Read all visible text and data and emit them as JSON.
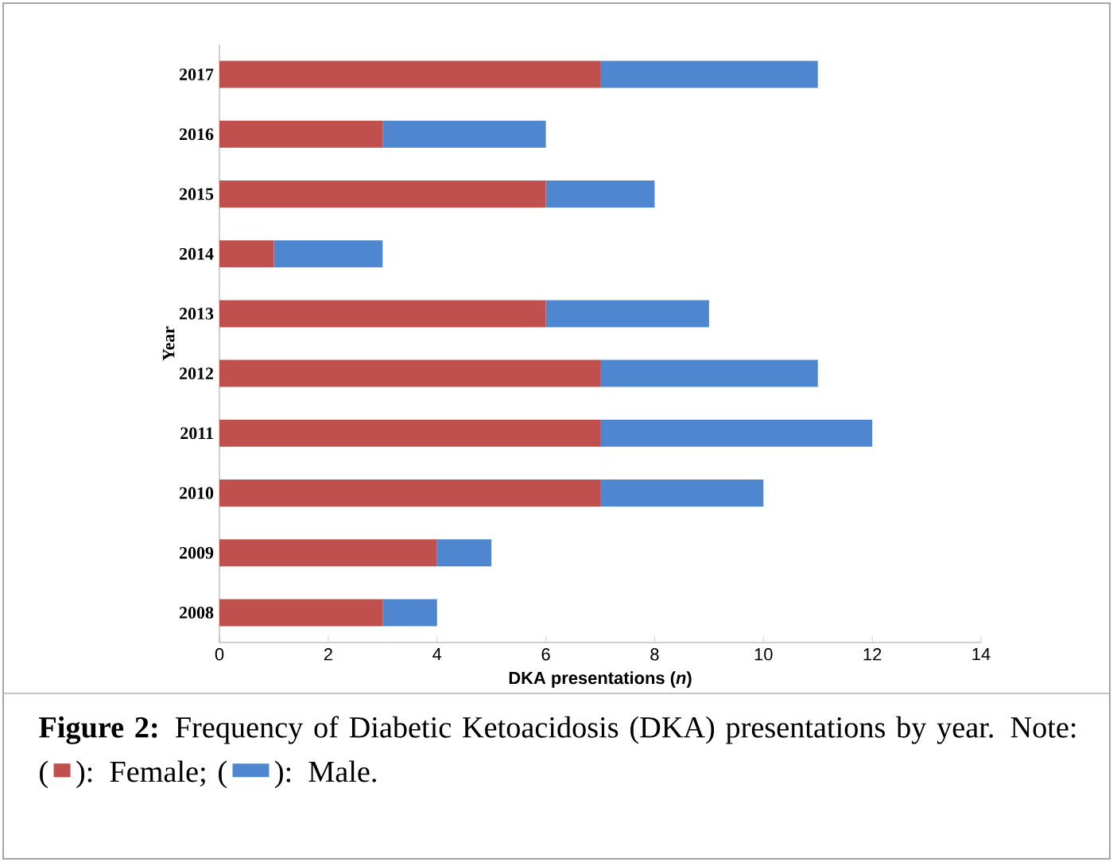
{
  "chart_data": {
    "type": "bar",
    "orientation": "horizontal",
    "stacked": true,
    "categories": [
      "2017",
      "2016",
      "2015",
      "2014",
      "2013",
      "2012",
      "2011",
      "2010",
      "2009",
      "2008"
    ],
    "series": [
      {
        "name": "Female",
        "color": "#c0504d",
        "values": [
          7,
          3,
          6,
          1,
          6,
          7,
          7,
          7,
          4,
          3
        ]
      },
      {
        "name": "Male",
        "color": "#4f86d0",
        "values": [
          4,
          3,
          2,
          2,
          3,
          4,
          5,
          3,
          1,
          1
        ]
      }
    ],
    "xlim": [
      0,
      14
    ],
    "xticks": [
      0,
      2,
      4,
      6,
      8,
      10,
      12,
      14
    ],
    "xlabel": "DKA presentations (*n*)",
    "ylabel": "Year",
    "legend": "bottom",
    "annotations": [
      "**Figure 2:** Frequency of Diabetic Ketoacidosis (DKA) presentations by year. Note: (",
      "): ",
      "; (",
      "): ",
      "."
    ]
  }
}
